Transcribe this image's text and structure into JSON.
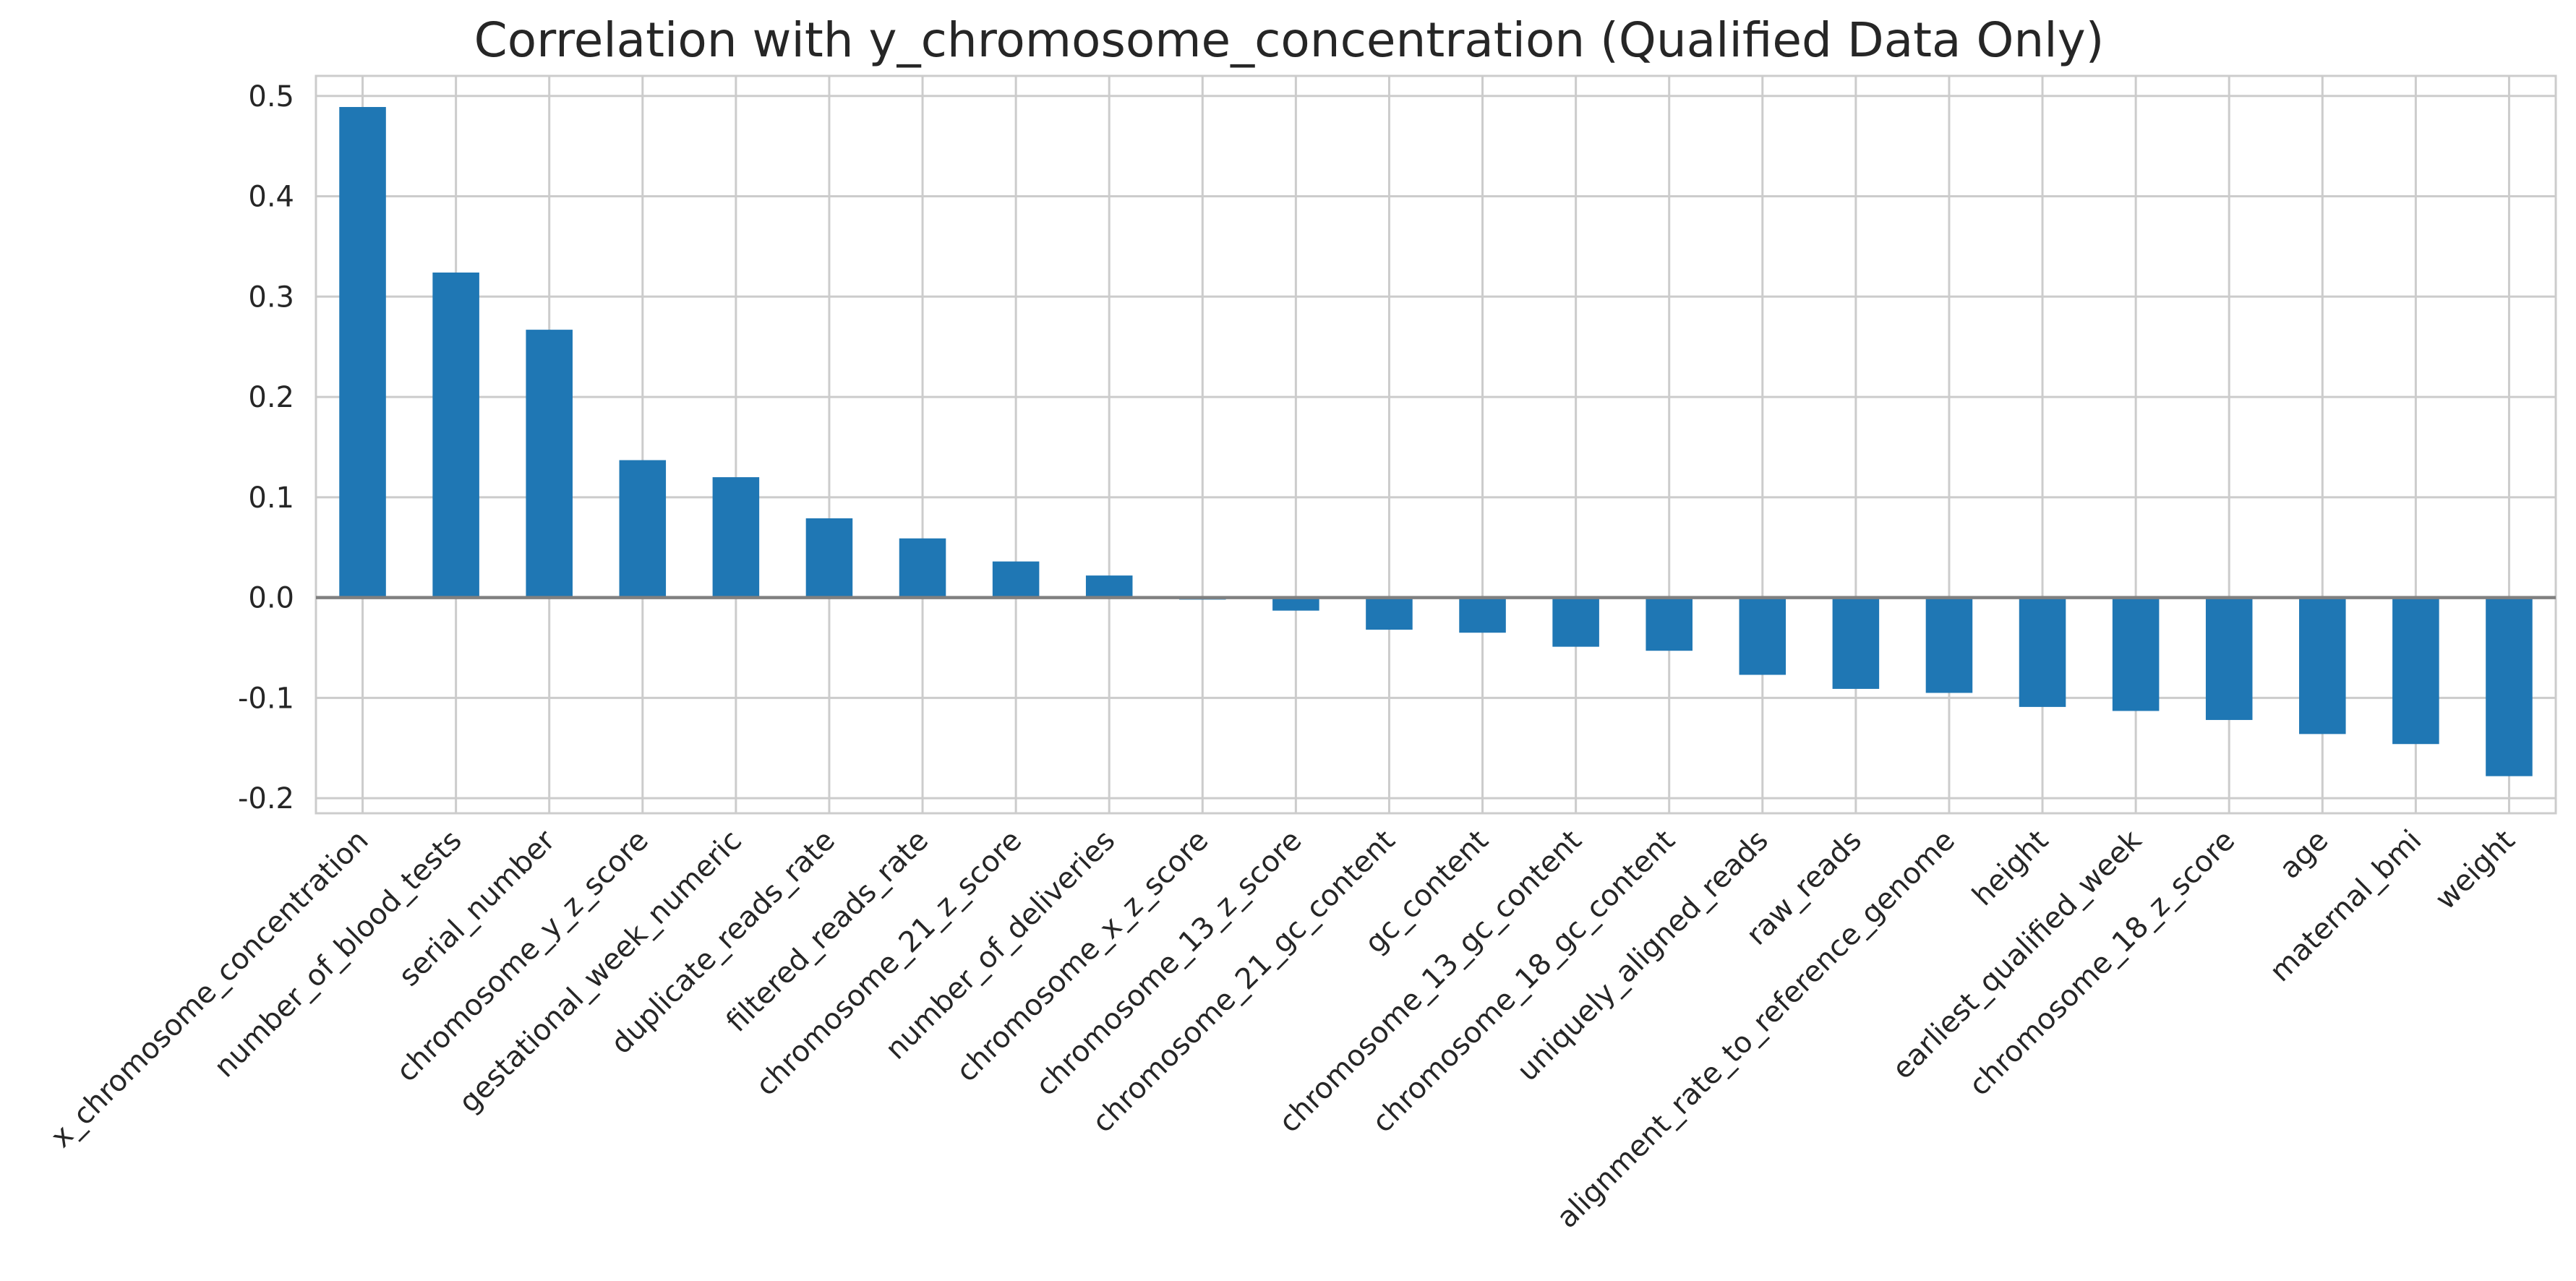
{
  "chart_data": {
    "type": "bar",
    "title": "Correlation with y_chromosome_concentration (Qualified Data Only)",
    "xlabel": "",
    "ylabel": "",
    "categories": [
      "x_chromosome_concentration",
      "number_of_blood_tests",
      "serial_number",
      "chromosome_y_z_score",
      "gestational_week_numeric",
      "duplicate_reads_rate",
      "filtered_reads_rate",
      "chromosome_21_z_score",
      "number_of_deliveries",
      "chromosome_x_z_score",
      "chromosome_13_z_score",
      "chromosome_21_gc_content",
      "gc_content",
      "chromosome_13_gc_content",
      "chromosome_18_gc_content",
      "uniquely_aligned_reads",
      "raw_reads",
      "alignment_rate_to_reference_genome",
      "height",
      "earliest_qualified_week",
      "chromosome_18_z_score",
      "age",
      "maternal_bmi",
      "weight"
    ],
    "values": [
      0.489,
      0.324,
      0.267,
      0.137,
      0.12,
      0.079,
      0.059,
      0.036,
      0.022,
      -0.002,
      -0.013,
      -0.032,
      -0.035,
      -0.049,
      -0.053,
      -0.077,
      -0.091,
      -0.095,
      -0.109,
      -0.113,
      -0.122,
      -0.136,
      -0.146,
      -0.178
    ],
    "ylim": [
      -0.215,
      0.52
    ],
    "yticks": [
      0.5,
      0.4,
      0.3,
      0.2,
      0.1,
      0.0,
      -0.1,
      -0.2
    ],
    "ytick_labels": [
      "0.5",
      "0.4",
      "0.3",
      "0.2",
      "0.1",
      "0.0",
      "-0.1",
      "-0.2"
    ],
    "grid": true,
    "legend": "none",
    "bar_color": "#1f77b4",
    "zero_line_color": "#808080",
    "grid_color": "#cccccc",
    "text_color": "#262626"
  }
}
